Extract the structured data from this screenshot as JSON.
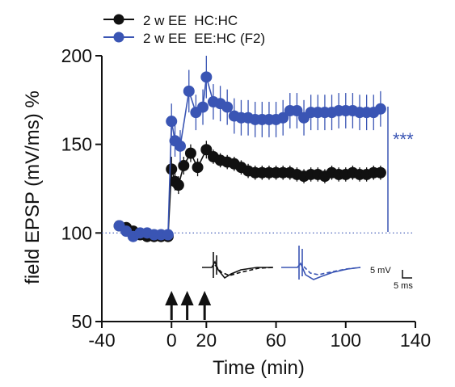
{
  "chart_data": {
    "type": "line",
    "xlabel": "Time (min)",
    "ylabel": "field EPSP (mV/ms) %",
    "xlim": [
      -40,
      140
    ],
    "ylim": [
      50,
      200
    ],
    "xticks": [
      -40,
      0,
      20,
      60,
      100,
      140
    ],
    "xtick_labels": [
      "-40",
      "0",
      "20",
      "60",
      "100",
      "140"
    ],
    "yticks": [
      50,
      100,
      150,
      200
    ],
    "ytick_labels": [
      "50",
      "100",
      "150",
      "200"
    ],
    "baseline": 100,
    "legend_position": "top-left",
    "significance": "***",
    "stimulus_times": [
      0,
      9,
      19
    ],
    "scale_bar": {
      "voltage_label": "5 mV",
      "time_label": "5 ms"
    },
    "series": [
      {
        "name": "2 w EE  HC:HC",
        "color": "#111111",
        "points": [
          {
            "x": -30,
            "y": 104,
            "e": 2
          },
          {
            "x": -26,
            "y": 103,
            "e": 2
          },
          {
            "x": -22,
            "y": 101,
            "e": 2
          },
          {
            "x": -18,
            "y": 99,
            "e": 2
          },
          {
            "x": -14,
            "y": 98,
            "e": 2
          },
          {
            "x": -10,
            "y": 98,
            "e": 2
          },
          {
            "x": -6,
            "y": 98,
            "e": 2
          },
          {
            "x": -2,
            "y": 98,
            "e": 2
          },
          {
            "x": 0,
            "y": 136,
            "e": 7
          },
          {
            "x": 2,
            "y": 129,
            "e": 5
          },
          {
            "x": 4,
            "y": 127,
            "e": 5
          },
          {
            "x": 7,
            "y": 138,
            "e": 5
          },
          {
            "x": 11,
            "y": 145,
            "e": 5
          },
          {
            "x": 15,
            "y": 137,
            "e": 5
          },
          {
            "x": 20,
            "y": 147,
            "e": 5
          },
          {
            "x": 24,
            "y": 143,
            "e": 4
          },
          {
            "x": 28,
            "y": 141,
            "e": 4
          },
          {
            "x": 32,
            "y": 140,
            "e": 4
          },
          {
            "x": 36,
            "y": 139,
            "e": 4
          },
          {
            "x": 40,
            "y": 137,
            "e": 4
          },
          {
            "x": 44,
            "y": 135,
            "e": 4
          },
          {
            "x": 48,
            "y": 134,
            "e": 4
          },
          {
            "x": 52,
            "y": 134,
            "e": 4
          },
          {
            "x": 56,
            "y": 134,
            "e": 4
          },
          {
            "x": 60,
            "y": 134,
            "e": 4
          },
          {
            "x": 64,
            "y": 134,
            "e": 4
          },
          {
            "x": 68,
            "y": 134,
            "e": 4
          },
          {
            "x": 72,
            "y": 133,
            "e": 4
          },
          {
            "x": 76,
            "y": 132,
            "e": 4
          },
          {
            "x": 80,
            "y": 133,
            "e": 4
          },
          {
            "x": 84,
            "y": 133,
            "e": 4
          },
          {
            "x": 88,
            "y": 132,
            "e": 4
          },
          {
            "x": 92,
            "y": 134,
            "e": 4
          },
          {
            "x": 96,
            "y": 133,
            "e": 4
          },
          {
            "x": 100,
            "y": 133,
            "e": 4
          },
          {
            "x": 104,
            "y": 134,
            "e": 4
          },
          {
            "x": 108,
            "y": 133,
            "e": 4
          },
          {
            "x": 112,
            "y": 133,
            "e": 4
          },
          {
            "x": 116,
            "y": 134,
            "e": 4
          },
          {
            "x": 120,
            "y": 134,
            "e": 4
          }
        ]
      },
      {
        "name": "2 w EE  EE:HC (F2)",
        "color": "#3a55b4",
        "points": [
          {
            "x": -30,
            "y": 104,
            "e": 2
          },
          {
            "x": -26,
            "y": 101,
            "e": 2
          },
          {
            "x": -22,
            "y": 98,
            "e": 2
          },
          {
            "x": -18,
            "y": 100,
            "e": 2
          },
          {
            "x": -14,
            "y": 100,
            "e": 2
          },
          {
            "x": -10,
            "y": 99,
            "e": 2
          },
          {
            "x": -6,
            "y": 99,
            "e": 2
          },
          {
            "x": -2,
            "y": 99,
            "e": 2
          },
          {
            "x": 0,
            "y": 163,
            "e": 10
          },
          {
            "x": 2,
            "y": 152,
            "e": 9
          },
          {
            "x": 5,
            "y": 149,
            "e": 9
          },
          {
            "x": 10,
            "y": 180,
            "e": 12
          },
          {
            "x": 14,
            "y": 168,
            "e": 10
          },
          {
            "x": 18,
            "y": 171,
            "e": 10
          },
          {
            "x": 20,
            "y": 188,
            "e": 12
          },
          {
            "x": 24,
            "y": 174,
            "e": 10
          },
          {
            "x": 28,
            "y": 173,
            "e": 10
          },
          {
            "x": 32,
            "y": 171,
            "e": 10
          },
          {
            "x": 36,
            "y": 166,
            "e": 10
          },
          {
            "x": 40,
            "y": 165,
            "e": 10
          },
          {
            "x": 44,
            "y": 165,
            "e": 10
          },
          {
            "x": 48,
            "y": 164,
            "e": 10
          },
          {
            "x": 52,
            "y": 164,
            "e": 10
          },
          {
            "x": 56,
            "y": 164,
            "e": 10
          },
          {
            "x": 60,
            "y": 164,
            "e": 10
          },
          {
            "x": 64,
            "y": 165,
            "e": 10
          },
          {
            "x": 68,
            "y": 169,
            "e": 10
          },
          {
            "x": 72,
            "y": 169,
            "e": 10
          },
          {
            "x": 76,
            "y": 165,
            "e": 10
          },
          {
            "x": 80,
            "y": 168,
            "e": 10
          },
          {
            "x": 84,
            "y": 168,
            "e": 10
          },
          {
            "x": 88,
            "y": 168,
            "e": 10
          },
          {
            "x": 92,
            "y": 168,
            "e": 10
          },
          {
            "x": 96,
            "y": 169,
            "e": 10
          },
          {
            "x": 100,
            "y": 169,
            "e": 10
          },
          {
            "x": 104,
            "y": 169,
            "e": 10
          },
          {
            "x": 108,
            "y": 168,
            "e": 10
          },
          {
            "x": 112,
            "y": 168,
            "e": 10
          },
          {
            "x": 116,
            "y": 168,
            "e": 10
          },
          {
            "x": 120,
            "y": 170,
            "e": 10
          }
        ]
      }
    ]
  }
}
